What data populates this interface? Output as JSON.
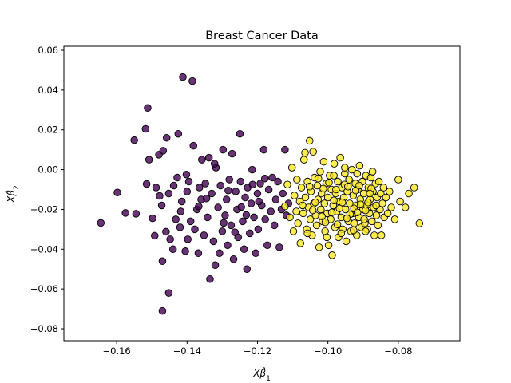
{
  "chart_data": {
    "type": "scatter",
    "title": "Breast Cancer Data",
    "xlabel_base": "Xβ̂",
    "xlabel_sub": "1",
    "ylabel_base": "Xβ̂",
    "ylabel_sub": "2",
    "xlim": [
      -0.175,
      -0.0625
    ],
    "ylim": [
      -0.086,
      0.062
    ],
    "xticks": [
      -0.16,
      -0.14,
      -0.12,
      -0.1,
      -0.08
    ],
    "xtick_labels": [
      "−0.16",
      "−0.14",
      "−0.12",
      "−0.10",
      "−0.08"
    ],
    "yticks": [
      -0.08,
      -0.06,
      -0.04,
      -0.02,
      0.0,
      0.02,
      0.04,
      0.06
    ],
    "ytick_labels": [
      "−0.08",
      "−0.06",
      "−0.04",
      "−0.02",
      "0.00",
      "0.02",
      "0.04",
      "0.06"
    ],
    "grid": false,
    "legend": "none",
    "series": [
      {
        "color": "#440154",
        "points": [
          [
            -0.1645,
            -0.0268
          ],
          [
            -0.1598,
            -0.0115
          ],
          [
            -0.1575,
            -0.0218
          ],
          [
            -0.155,
            0.0148
          ],
          [
            -0.1545,
            -0.0222
          ],
          [
            -0.1518,
            0.0205
          ],
          [
            -0.1512,
            0.031
          ],
          [
            -0.1515,
            -0.0072
          ],
          [
            -0.1508,
            0.005
          ],
          [
            -0.1498,
            -0.0245
          ],
          [
            -0.1492,
            -0.0332
          ],
          [
            -0.1488,
            -0.009
          ],
          [
            -0.148,
            0.0075
          ],
          [
            -0.1478,
            -0.0132
          ],
          [
            -0.1472,
            -0.018
          ],
          [
            -0.147,
            -0.046
          ],
          [
            -0.1468,
            0.0095
          ],
          [
            -0.146,
            -0.0312
          ],
          [
            -0.1452,
            -0.062
          ],
          [
            -0.147,
            -0.071
          ],
          [
            -0.1458,
            0.016
          ],
          [
            -0.1452,
            -0.012
          ],
          [
            -0.1448,
            -0.035
          ],
          [
            -0.144,
            -0.04
          ],
          [
            -0.1438,
            -0.008
          ],
          [
            -0.1432,
            -0.025
          ],
          [
            -0.1428,
            -0.004
          ],
          [
            -0.1425,
            0.018
          ],
          [
            -0.142,
            -0.029
          ],
          [
            -0.1418,
            -0.021
          ],
          [
            -0.1415,
            -0.016
          ],
          [
            -0.1412,
            0.0465
          ],
          [
            -0.1405,
            -0.041
          ],
          [
            -0.14,
            -0.011
          ],
          [
            -0.1398,
            -0.035
          ],
          [
            -0.1395,
            -0.006
          ],
          [
            -0.139,
            -0.026
          ],
          [
            -0.1385,
            0.0445
          ],
          [
            -0.1382,
            0.012
          ],
          [
            -0.1378,
            -0.03
          ],
          [
            -0.1372,
            -0.02
          ],
          [
            -0.1368,
            -0.042
          ],
          [
            -0.1365,
            -0.009
          ],
          [
            -0.136,
            -0.015
          ],
          [
            -0.1358,
            0.005
          ],
          [
            -0.1352,
            -0.033
          ],
          [
            -0.1348,
            -0.007
          ],
          [
            -0.1342,
            -0.024
          ],
          [
            -0.1338,
            0.006
          ],
          [
            -0.1335,
            -0.055
          ],
          [
            -0.133,
            -0.012
          ],
          [
            -0.1325,
            -0.036
          ],
          [
            -0.132,
            -0.048
          ],
          [
            -0.1318,
            0.001
          ],
          [
            -0.1312,
            -0.019
          ],
          [
            -0.1308,
            -0.042
          ],
          [
            -0.1305,
            -0.008
          ],
          [
            -0.13,
            -0.031
          ],
          [
            -0.1298,
            0.01
          ],
          [
            -0.1292,
            -0.023
          ],
          [
            -0.1288,
            -0.015
          ],
          [
            -0.1285,
            -0.038
          ],
          [
            -0.128,
            -0.005
          ],
          [
            -0.1275,
            -0.028
          ],
          [
            -0.1272,
            0.008
          ],
          [
            -0.1268,
            -0.045
          ],
          [
            -0.1262,
            -0.011
          ],
          [
            -0.1258,
            -0.02
          ],
          [
            -0.1255,
            -0.034
          ],
          [
            -0.125,
            0.018
          ],
          [
            -0.1248,
            -0.006
          ],
          [
            -0.1242,
            -0.026
          ],
          [
            -0.1238,
            -0.04
          ],
          [
            -0.1235,
            -0.014
          ],
          [
            -0.123,
            -0.05
          ],
          [
            -0.1228,
            -0.009
          ],
          [
            -0.1222,
            -0.032
          ],
          [
            -0.1218,
            -0.017
          ],
          [
            -0.1215,
            0.0
          ],
          [
            -0.121,
            -0.024
          ],
          [
            -0.1205,
            -0.042
          ],
          [
            -0.12,
            -0.012
          ],
          [
            -0.1198,
            -0.03
          ],
          [
            -0.1192,
            -0.007
          ],
          [
            -0.1188,
            -0.018
          ],
          [
            -0.1182,
            0.01
          ],
          [
            -0.1178,
            -0.025
          ],
          [
            -0.1172,
            -0.038
          ],
          [
            -0.1168,
            -0.01
          ],
          [
            -0.1162,
            -0.021
          ],
          [
            -0.1158,
            -0.004
          ],
          [
            -0.1152,
            -0.028
          ],
          [
            -0.1148,
            -0.015
          ],
          [
            -0.1142,
            -0.006
          ],
          [
            -0.1138,
            -0.039
          ],
          [
            -0.1132,
            -0.02
          ],
          [
            -0.1128,
            -0.012
          ],
          [
            -0.1122,
            0.01
          ],
          [
            -0.1118,
            -0.023
          ],
          [
            -0.1112,
            -0.017
          ],
          [
            -0.1402,
            -0.0025
          ],
          [
            -0.1367,
            -0.0185
          ],
          [
            -0.1345,
            -0.0145
          ],
          [
            -0.1322,
            0.003
          ],
          [
            -0.1296,
            -0.0268
          ],
          [
            -0.1283,
            -0.0105
          ],
          [
            -0.1264,
            -0.0315
          ],
          [
            -0.1246,
            -0.0188
          ],
          [
            -0.1232,
            -0.0228
          ],
          [
            -0.1214,
            -0.0075
          ],
          [
            -0.1196,
            -0.016
          ],
          [
            -0.1179,
            -0.0045
          ]
        ]
      },
      {
        "color": "#fde725",
        "points": [
          [
            -0.1122,
            -0.0185
          ],
          [
            -0.1115,
            -0.0075
          ],
          [
            -0.1108,
            -0.024
          ],
          [
            -0.1102,
            0.001
          ],
          [
            -0.1098,
            -0.031
          ],
          [
            -0.1095,
            -0.013
          ],
          [
            -0.109,
            -0.021
          ],
          [
            -0.1088,
            -0.005
          ],
          [
            -0.1085,
            -0.027
          ],
          [
            -0.108,
            -0.016
          ],
          [
            -0.1078,
            -0.037
          ],
          [
            -0.1075,
            -0.009
          ],
          [
            -0.107,
            -0.022
          ],
          [
            -0.1068,
            0.005
          ],
          [
            -0.1064,
            -0.014
          ],
          [
            -0.106,
            -0.03
          ],
          [
            -0.1058,
            -0.006
          ],
          [
            -0.1055,
            -0.019
          ],
          [
            -0.1052,
            0.0145
          ],
          [
            -0.105,
            -0.025
          ],
          [
            -0.1048,
            -0.011
          ],
          [
            -0.1045,
            -0.033
          ],
          [
            -0.1042,
            0.009
          ],
          [
            -0.104,
            -0.017
          ],
          [
            -0.1038,
            -0.004
          ],
          [
            -0.1035,
            -0.023
          ],
          [
            -0.1032,
            -0.028
          ],
          [
            -0.103,
            -0.008
          ],
          [
            -0.1028,
            -0.015
          ],
          [
            -0.1025,
            -0.039
          ],
          [
            -0.1022,
            -0.001
          ],
          [
            -0.102,
            -0.02
          ],
          [
            -0.1018,
            -0.012
          ],
          [
            -0.1015,
            -0.026
          ],
          [
            -0.1012,
            0.004
          ],
          [
            -0.101,
            -0.017
          ],
          [
            -0.1008,
            -0.031
          ],
          [
            -0.1005,
            -0.007
          ],
          [
            -0.1002,
            -0.022
          ],
          [
            -0.1,
            -0.014
          ],
          [
            -0.0998,
            -0.038
          ],
          [
            -0.0995,
            -0.003
          ],
          [
            -0.0992,
            -0.025
          ],
          [
            -0.099,
            -0.01
          ],
          [
            -0.0988,
            -0.043
          ],
          [
            -0.0985,
            -0.018
          ],
          [
            -0.0982,
            0.003
          ],
          [
            -0.098,
            -0.029
          ],
          [
            -0.0978,
            -0.012
          ],
          [
            -0.0975,
            -0.021
          ],
          [
            -0.0972,
            -0.006
          ],
          [
            -0.097,
            -0.034
          ],
          [
            -0.0968,
            -0.016
          ],
          [
            -0.0965,
            0.006
          ],
          [
            -0.0962,
            -0.024
          ],
          [
            -0.096,
            -0.009
          ],
          [
            -0.0958,
            -0.03
          ],
          [
            -0.0955,
            -0.014
          ],
          [
            -0.0952,
            -0.002
          ],
          [
            -0.095,
            -0.02
          ],
          [
            -0.0948,
            -0.036
          ],
          [
            -0.0945,
            -0.011
          ],
          [
            -0.0942,
            -0.026
          ],
          [
            -0.094,
            -0.005
          ],
          [
            -0.0938,
            -0.017
          ],
          [
            -0.0935,
            -0.031
          ],
          [
            -0.0932,
            0.0
          ],
          [
            -0.093,
            -0.022
          ],
          [
            -0.0928,
            -0.013
          ],
          [
            -0.0925,
            -0.027
          ],
          [
            -0.0922,
            -0.007
          ],
          [
            -0.092,
            -0.018
          ],
          [
            -0.0918,
            -0.033
          ],
          [
            -0.0915,
            -0.01
          ],
          [
            -0.0912,
            -0.024
          ],
          [
            -0.091,
            0.002
          ],
          [
            -0.0908,
            -0.015
          ],
          [
            -0.0905,
            -0.029
          ],
          [
            -0.0902,
            -0.006
          ],
          [
            -0.09,
            -0.02
          ],
          [
            -0.0898,
            -0.012
          ],
          [
            -0.0895,
            -0.027
          ],
          [
            -0.0892,
            -0.003
          ],
          [
            -0.089,
            -0.018
          ],
          [
            -0.0888,
            -0.03
          ],
          [
            -0.0885,
            -0.009
          ],
          [
            -0.0882,
            -0.022
          ],
          [
            -0.088,
            -0.015
          ],
          [
            -0.0878,
            -0.004
          ],
          [
            -0.0875,
            -0.026
          ],
          [
            -0.0872,
            -0.011
          ],
          [
            -0.087,
            -0.019
          ],
          [
            -0.0868,
            -0.033
          ],
          [
            -0.0865,
            -0.007
          ],
          [
            -0.0862,
            -0.023
          ],
          [
            -0.086,
            -0.014
          ],
          [
            -0.0858,
            -0.028
          ],
          [
            -0.0855,
            -0.006
          ],
          [
            -0.0852,
            -0.02
          ],
          [
            -0.085,
            -0.012
          ],
          [
            -0.0848,
            -0.033
          ],
          [
            -0.0845,
            -0.017
          ],
          [
            -0.0842,
            -0.009
          ],
          [
            -0.084,
            -0.024
          ],
          [
            -0.0835,
            -0.014
          ],
          [
            -0.083,
            -0.022
          ],
          [
            -0.0825,
            -0.011
          ],
          [
            -0.082,
            -0.019
          ],
          [
            -0.081,
            -0.025
          ],
          [
            -0.08,
            -0.005
          ],
          [
            -0.0795,
            -0.016
          ],
          [
            -0.078,
            -0.019
          ],
          [
            -0.077,
            -0.012
          ],
          [
            -0.0755,
            -0.009
          ],
          [
            -0.074,
            -0.027
          ],
          [
            -0.1065,
            0.0085
          ],
          [
            -0.1052,
            -0.0085
          ],
          [
            -0.1036,
            -0.0165
          ],
          [
            -0.1013,
            -0.0095
          ],
          [
            -0.0997,
            -0.0065
          ],
          [
            -0.0983,
            -0.0155
          ],
          [
            -0.0967,
            -0.0195
          ],
          [
            -0.0953,
            -0.0075
          ],
          [
            -0.0937,
            -0.0225
          ],
          [
            -0.0921,
            -0.0105
          ],
          [
            -0.0907,
            -0.0175
          ],
          [
            -0.0893,
            -0.0205
          ],
          [
            -0.0877,
            -0.0095
          ],
          [
            -0.1072,
            -0.018
          ],
          [
            -0.1043,
            -0.0205
          ],
          [
            -0.1027,
            -0.0045
          ],
          [
            -0.1007,
            -0.0265
          ],
          [
            -0.0989,
            -0.0215
          ],
          [
            -0.0973,
            -0.0275
          ],
          [
            -0.0959,
            -0.0165
          ],
          [
            -0.0943,
            -0.0085
          ],
          [
            -0.0926,
            -0.0195
          ],
          [
            -0.0911,
            -0.008
          ],
          [
            -0.0897,
            -0.025
          ],
          [
            -0.0881,
            -0.012
          ],
          [
            -0.0863,
            -0.018
          ],
          [
            -0.1017,
            -0.0235
          ],
          [
            -0.0977,
            -0.01
          ],
          [
            -0.0946,
            -0.0245
          ],
          [
            -0.0916,
            -0.0215
          ],
          [
            -0.0886,
            -0.0165
          ],
          [
            -0.1058,
            -0.032
          ],
          [
            -0.1003,
            -0.034
          ],
          [
            -0.0962,
            -0.032
          ],
          [
            -0.0927,
            -0.0305
          ],
          [
            -0.0893,
            -0.031
          ],
          [
            -0.0983,
            -0.003
          ],
          [
            -0.0952,
            0.001
          ],
          [
            -0.0917,
            -0.002
          ],
          [
            -0.0873,
            -0.001
          ]
        ]
      }
    ]
  }
}
